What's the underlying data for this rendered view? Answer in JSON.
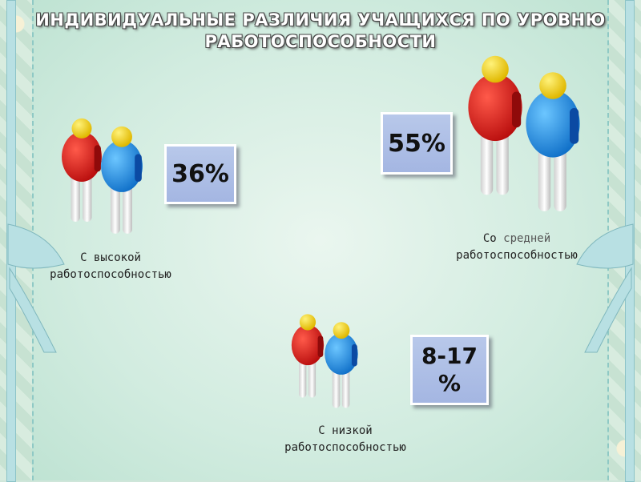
{
  "title": {
    "line1": "ИНДИВИДУАЛЬНЫЕ РАЗЛИЧИЯ УЧАЩИХСЯ ПО УРОВНЮ",
    "line2": "РАБОТОСПОСОБНОСТИ"
  },
  "groups": {
    "high": {
      "percent": "36%",
      "label_line1": "С высокой",
      "label_line2": "работоспособностью"
    },
    "medium": {
      "percent": "55%",
      "label_prefix": "Со",
      "label_accent": "средней",
      "label_line2": "работоспособностью"
    },
    "low": {
      "percent_line1": "8-17",
      "percent_line2": "%",
      "label_line1": "С низкой",
      "label_line2": "работоспособностью"
    }
  },
  "colors": {
    "red_figure": "#d81a1a",
    "blue_figure": "#1e8ee0",
    "head": "#f5d20a",
    "percent_box": "#a9bbe4"
  }
}
